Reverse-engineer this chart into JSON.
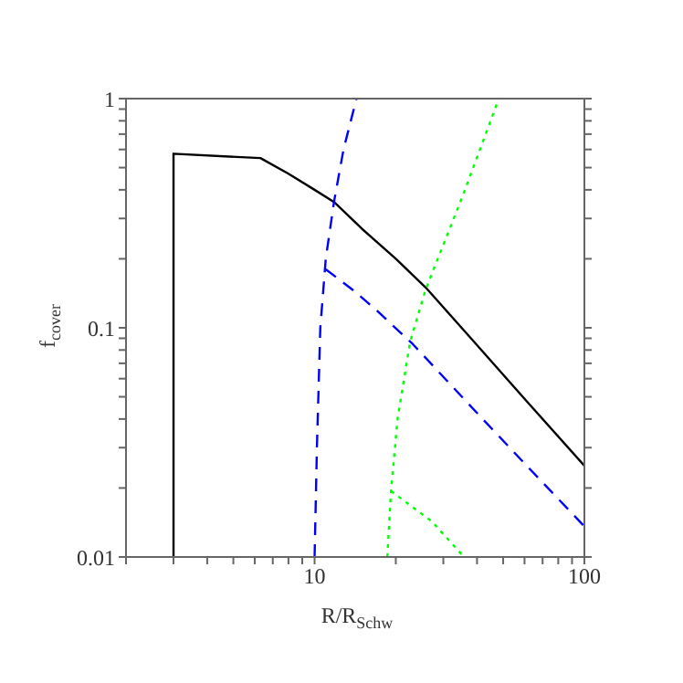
{
  "chart_data": {
    "type": "line",
    "xlabel": "R/R$_{Schw}$",
    "ylabel": "f$_{cover}$",
    "log": "xy",
    "marker": "none",
    "xlim": [
      2,
      100
    ],
    "ylim": [
      0.01,
      1
    ],
    "xticks": [
      {
        "value": 2,
        "label": null
      },
      {
        "value": 3,
        "label": null
      },
      {
        "value": 4,
        "label": null
      },
      {
        "value": 5,
        "label": null
      },
      {
        "value": 6,
        "label": null
      },
      {
        "value": 7,
        "label": null
      },
      {
        "value": 8,
        "label": null
      },
      {
        "value": 9,
        "label": null
      },
      10,
      {
        "value": 20,
        "label": null
      },
      {
        "value": 30,
        "label": null
      },
      {
        "value": 40,
        "label": null
      },
      {
        "value": 50,
        "label": null
      },
      {
        "value": 60,
        "label": null
      },
      {
        "value": 70,
        "label": null
      },
      {
        "value": 80,
        "label": null
      },
      {
        "value": 90,
        "label": null
      },
      100
    ],
    "yticks": [
      0.01,
      {
        "value": 0.02,
        "label": null
      },
      {
        "value": 0.03,
        "label": null
      },
      {
        "value": 0.04,
        "label": null
      },
      {
        "value": 0.05,
        "label": null
      },
      {
        "value": 0.06,
        "label": null
      },
      {
        "value": 0.07,
        "label": null
      },
      {
        "value": 0.08,
        "label": null
      },
      {
        "value": 0.09,
        "label": null
      },
      0.1,
      {
        "value": 0.2,
        "label": null
      },
      {
        "value": 0.3,
        "label": null
      },
      {
        "value": 0.4,
        "label": null
      },
      {
        "value": 0.5,
        "label": null
      },
      {
        "value": 0.6,
        "label": null
      },
      {
        "value": 0.7,
        "label": null
      },
      {
        "value": 0.8,
        "label": null
      },
      {
        "value": 0.9,
        "label": null
      },
      1
    ],
    "series": [
      {
        "color": "#000000",
        "line_style": "solid",
        "x": [
          3,
          3,
          6.3,
          8,
          10,
          11.8,
          15,
          20,
          25.8,
          40,
          60,
          100
        ],
        "values": [
          0.01,
          0.575,
          0.55,
          0.47,
          0.4,
          0.354,
          0.27,
          0.2,
          0.15,
          0.084,
          0.049,
          0.025
        ]
      },
      {
        "color": "#0000ff",
        "line_style": "dashed",
        "x": [
          10,
          10.2,
          10.5,
          11,
          11.8,
          12.8,
          14.3
        ],
        "values": [
          0.01,
          0.03,
          0.1,
          0.2,
          0.354,
          0.6,
          1
        ]
      },
      {
        "color": "#0000ff",
        "line_style": "dashed",
        "x": [
          11,
          14,
          17,
          23.1,
          40,
          60,
          100
        ],
        "values": [
          0.18,
          0.145,
          0.119,
          0.085,
          0.0425,
          0.0256,
          0.0136
        ]
      },
      {
        "color": "#00ff00",
        "line_style": "dotted",
        "x": [
          18.6,
          19.2,
          20.3,
          22.6,
          25.8,
          35.2,
          48.2
        ],
        "values": [
          0.01,
          0.0194,
          0.04,
          0.087,
          0.147,
          0.37,
          1
        ]
      },
      {
        "color": "#00ff00",
        "line_style": "dotted",
        "x": [
          19.2,
          27.2,
          35.8
        ],
        "values": [
          0.0194,
          0.0143,
          0.01
        ]
      }
    ]
  }
}
